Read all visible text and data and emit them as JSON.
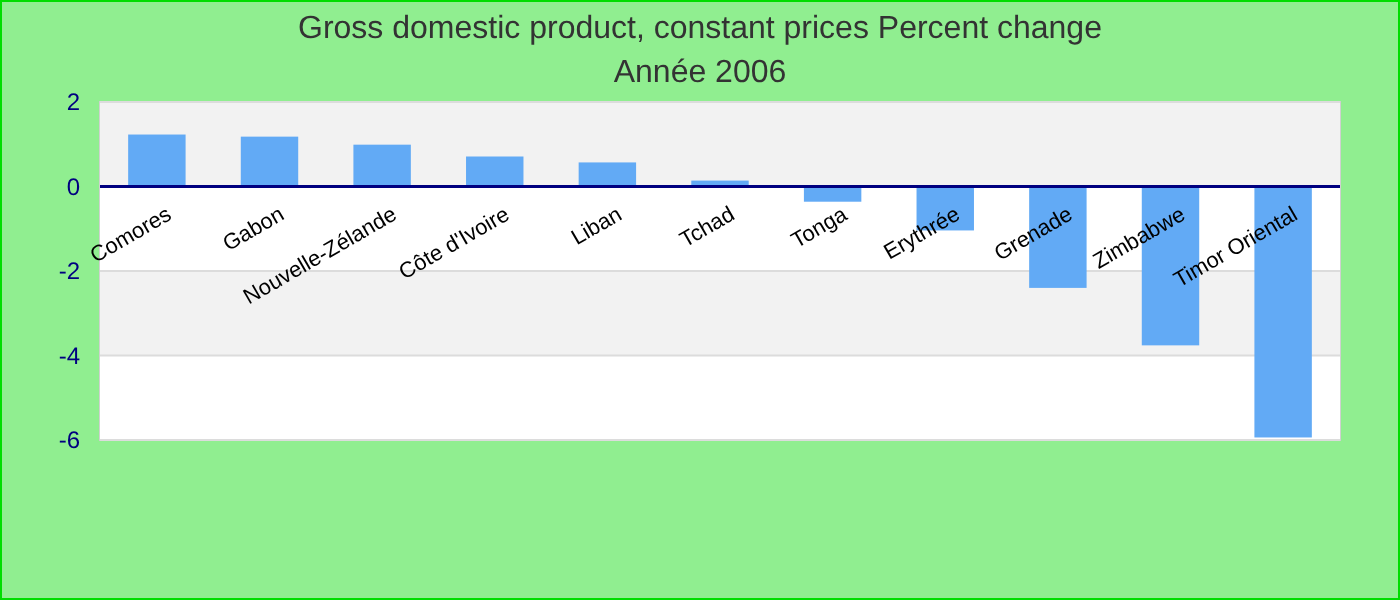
{
  "chart_data": {
    "type": "bar",
    "title": "Gross domestic product, constant prices  Percent change",
    "subtitle": "Année 2006",
    "categories": [
      "Comores",
      "Gabon",
      "Nouvelle-Zélande",
      "Côte d'Ivoire",
      "Liban",
      "Tchad",
      "Tonga",
      "Erythrée",
      "Grenade",
      "Zimbabwe",
      "Timor Oriental"
    ],
    "values": [
      1.23,
      1.18,
      0.99,
      0.71,
      0.57,
      0.14,
      -0.36,
      -1.04,
      -2.4,
      -3.76,
      -5.94
    ],
    "color": "#62aaf5",
    "ylim": [
      -6,
      2
    ],
    "yticks": [
      -6,
      -4,
      -2,
      0,
      2
    ],
    "grid": "y"
  }
}
